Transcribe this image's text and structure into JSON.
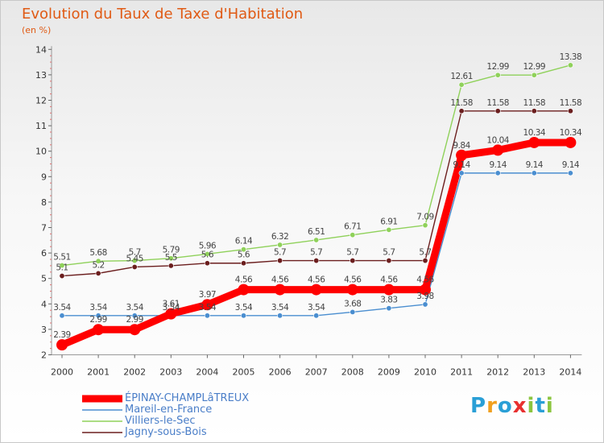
{
  "title": "Evolution du Taux de Taxe d'Habitation",
  "subtitle": "(en %)",
  "logo": {
    "text": "Proxiti",
    "letters": [
      "P",
      "r",
      "o",
      "x",
      "i",
      "t",
      "i"
    ],
    "colors": [
      "#2a9fd6",
      "#f0a020",
      "#2a9fd6",
      "#e83030",
      "#8bc53f",
      "#2a9fd6",
      "#8bc53f"
    ]
  },
  "chart_data": {
    "type": "line",
    "x": [
      "2000",
      "2001",
      "2002",
      "2003",
      "2004",
      "2005",
      "2006",
      "2007",
      "2008",
      "2009",
      "2010",
      "2011",
      "2012",
      "2013",
      "2014"
    ],
    "ylim": [
      2,
      14
    ],
    "yticks": [
      "2",
      "3",
      "4",
      "5",
      "6",
      "7",
      "8",
      "9",
      "10",
      "11",
      "12",
      "13",
      "14"
    ],
    "grid": false,
    "legend": "bottom-left",
    "series": [
      {
        "name": "ÉPINAY-CHAMPLâTREUX",
        "color": "#ff0000",
        "values": [
          2.39,
          2.99,
          2.99,
          3.61,
          3.97,
          4.56,
          4.56,
          4.56,
          4.56,
          4.56,
          4.56,
          9.84,
          10.04,
          10.34,
          10.34
        ],
        "labels": [
          "2.39",
          "2.99",
          "2.99",
          "3.61",
          "3.97",
          "4.56",
          "4.56",
          "4.56",
          "4.56",
          "4.56",
          "4.56",
          "9.84",
          "10.04",
          "10.34",
          "10.34"
        ]
      },
      {
        "name": "Mareil-en-France",
        "color": "#4a8ed0",
        "values": [
          3.54,
          3.54,
          3.54,
          3.54,
          3.54,
          3.54,
          3.54,
          3.54,
          3.68,
          3.83,
          3.98,
          9.14,
          9.14,
          9.14,
          9.14
        ],
        "labels": [
          "3.54",
          "3.54",
          "3.54",
          "3.54",
          "3.54",
          "3.54",
          "3.54",
          "3.54",
          "3.68",
          "3.83",
          "3.98",
          "9.14",
          "9.14",
          "9.14",
          "9.14"
        ]
      },
      {
        "name": "Villiers-le-Sec",
        "color": "#8fd15a",
        "values": [
          5.51,
          5.68,
          5.7,
          5.79,
          5.96,
          6.14,
          6.32,
          6.51,
          6.71,
          6.91,
          7.09,
          12.61,
          12.99,
          12.99,
          13.38
        ],
        "labels": [
          "5.51",
          "5.68",
          "5.7",
          "5.79",
          "5.96",
          "6.14",
          "6.32",
          "6.51",
          "6.71",
          "6.91",
          "7.09",
          "12.61",
          "12.99",
          "12.99",
          "13.38"
        ]
      },
      {
        "name": "Jagny-sous-Bois",
        "color": "#6b1e1e",
        "values": [
          5.1,
          5.2,
          5.45,
          5.5,
          5.6,
          5.6,
          5.7,
          5.7,
          5.7,
          5.7,
          5.7,
          11.58,
          11.58,
          11.58,
          11.58
        ],
        "labels": [
          "5.1",
          "5.2",
          "5.45",
          "5.5",
          "5.6",
          "5.6",
          "5.7",
          "5.7",
          "5.7",
          "5.7",
          "5.7",
          "11.58",
          "11.58",
          "11.58",
          "11.58"
        ]
      }
    ]
  }
}
